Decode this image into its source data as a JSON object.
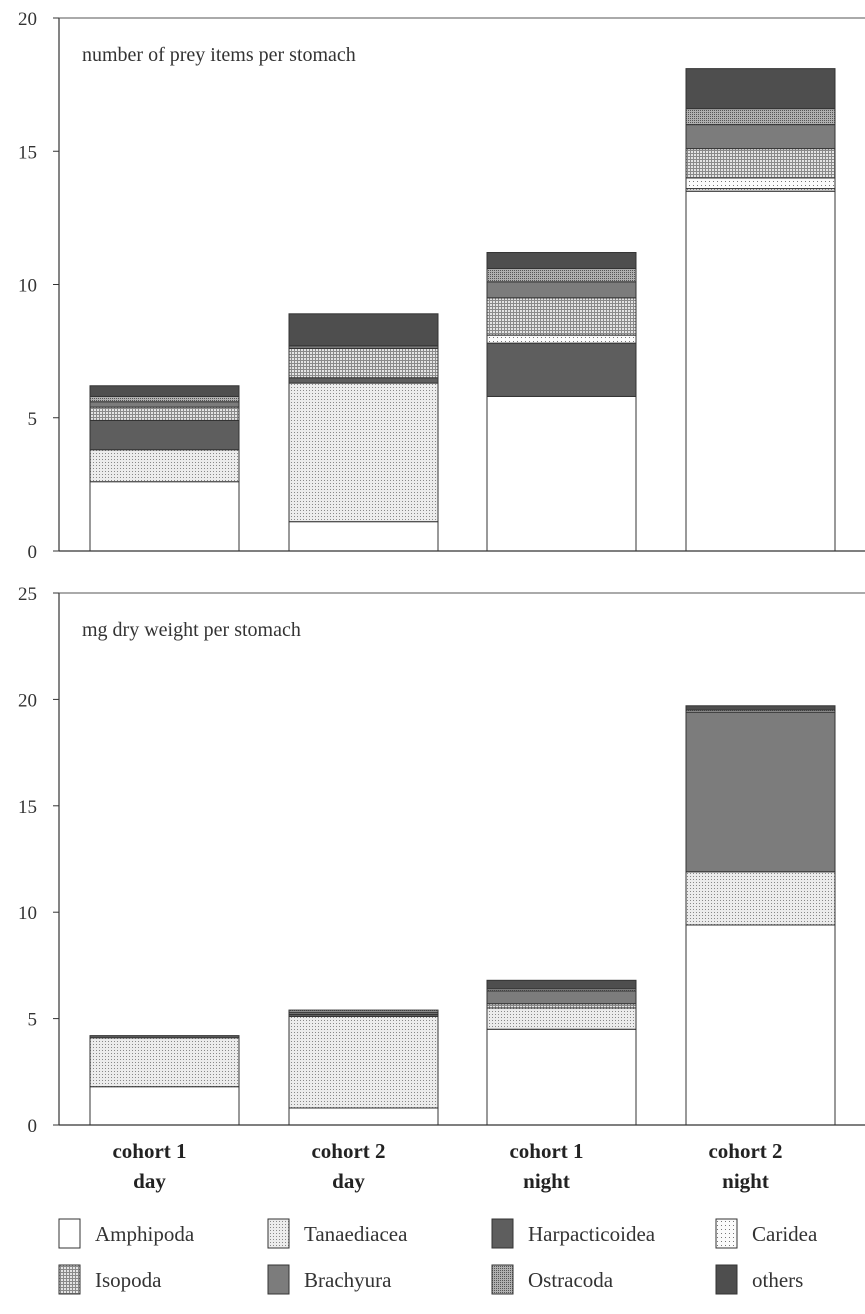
{
  "chart_data": [
    {
      "type": "bar",
      "stacked": true,
      "title": "number of prey items per stomach",
      "categories": [
        "cohort 1 day",
        "cohort 2 day",
        "cohort 1 night",
        "cohort 2 night"
      ],
      "ylim": [
        0,
        20
      ],
      "yticks": [
        0,
        5,
        10,
        15,
        20
      ],
      "grid": false,
      "series": [
        {
          "name": "Amphipoda",
          "values": [
            2.6,
            1.1,
            5.8,
            13.5
          ]
        },
        {
          "name": "Tanaediacea",
          "values": [
            1.2,
            5.2,
            0.0,
            0.1
          ]
        },
        {
          "name": "Harpacticoidea",
          "values": [
            1.1,
            0.2,
            2.0,
            0.0
          ]
        },
        {
          "name": "Caridea",
          "values": [
            0.0,
            0.0,
            0.3,
            0.4
          ]
        },
        {
          "name": "Isopoda",
          "values": [
            0.5,
            1.1,
            1.4,
            1.1
          ]
        },
        {
          "name": "Brachyura",
          "values": [
            0.2,
            0.1,
            0.6,
            0.9
          ]
        },
        {
          "name": "Ostracoda",
          "values": [
            0.2,
            0.0,
            0.5,
            0.6
          ]
        },
        {
          "name": "others",
          "values": [
            0.4,
            1.2,
            0.6,
            1.5
          ]
        }
      ]
    },
    {
      "type": "bar",
      "stacked": true,
      "title": "mg dry weight per stomach",
      "categories": [
        "cohort 1 day",
        "cohort 2 day",
        "cohort 1 night",
        "cohort 2 night"
      ],
      "ylim": [
        0,
        25
      ],
      "yticks": [
        0,
        5,
        10,
        15,
        20,
        25
      ],
      "grid": false,
      "series": [
        {
          "name": "Amphipoda",
          "values": [
            1.8,
            0.8,
            4.5,
            9.4
          ]
        },
        {
          "name": "Tanaediacea",
          "values": [
            2.3,
            4.3,
            1.0,
            2.5
          ]
        },
        {
          "name": "Harpacticoidea",
          "values": [
            0.1,
            0.1,
            0.0,
            0.0
          ]
        },
        {
          "name": "Caridea",
          "values": [
            0.0,
            0.0,
            0.0,
            0.0
          ]
        },
        {
          "name": "Isopoda",
          "values": [
            0.0,
            0.0,
            0.2,
            0.0
          ]
        },
        {
          "name": "Brachyura",
          "values": [
            0.0,
            0.1,
            0.6,
            7.5
          ]
        },
        {
          "name": "Ostracoda",
          "values": [
            0.0,
            0.1,
            0.1,
            0.1
          ]
        },
        {
          "name": "others",
          "values": [
            0.0,
            0.0,
            0.4,
            0.2
          ]
        }
      ]
    }
  ],
  "category_labels": [
    {
      "line1": "cohort 1",
      "line2": "day"
    },
    {
      "line1": "cohort 2",
      "line2": "day"
    },
    {
      "line1": "cohort 1",
      "line2": "night"
    },
    {
      "line1": "cohort 2",
      "line2": "night"
    }
  ],
  "legend": [
    {
      "name": "Amphipoda",
      "color": "#ffffff",
      "pattern": "blank"
    },
    {
      "name": "Tanaediacea",
      "color": "#e2e2e2",
      "pattern": "fine-dots"
    },
    {
      "name": "Harpacticoidea",
      "color": "#5e5e5e",
      "pattern": "solid"
    },
    {
      "name": "Caridea",
      "color": "#f7f7f7",
      "pattern": "sparse-dots"
    },
    {
      "name": "Isopoda",
      "color": "#d2d2d2",
      "pattern": "grid"
    },
    {
      "name": "Brachyura",
      "color": "#7c7c7c",
      "pattern": "solid"
    },
    {
      "name": "Ostracoda",
      "color": "#9a9a9a",
      "pattern": "dense-dots"
    },
    {
      "name": "others",
      "color": "#4e4e4e",
      "pattern": "solid"
    }
  ]
}
